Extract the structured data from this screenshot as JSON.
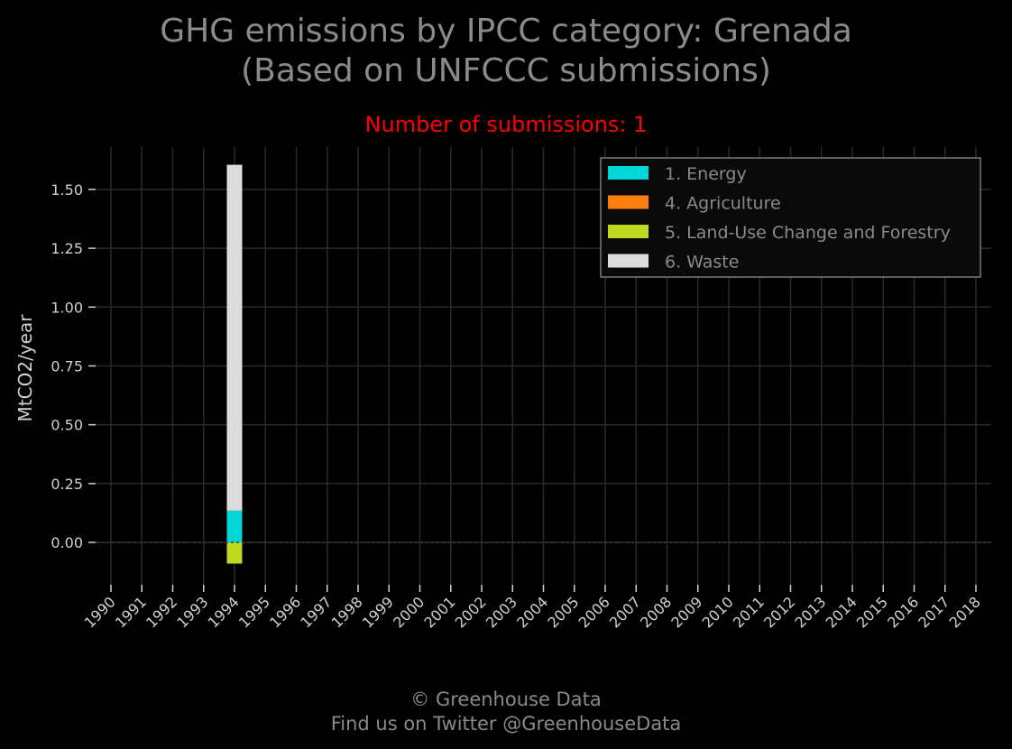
{
  "header": {
    "title_line1": "GHG emissions by IPCC category: Grenada",
    "title_line2": "(Based on UNFCCC submissions)",
    "subtitle": "Number of submissions: 1"
  },
  "footer": {
    "line1": "© Greenhouse Data",
    "line2": "Find us on Twitter @GreenhouseData"
  },
  "colors": {
    "background": "#000000",
    "grid": "#2a2a2a",
    "text": "#8a8a8a",
    "tick": "#d0d0d0",
    "subtitle": "#ff0000"
  },
  "chart_data": {
    "type": "bar",
    "stacked": true,
    "ylabel": "MtCO2/year",
    "xlabel": "",
    "ylim": [
      -0.18,
      1.68
    ],
    "yticks": [
      0.0,
      0.25,
      0.5,
      0.75,
      1.0,
      1.25,
      1.5
    ],
    "ytick_labels": [
      "0.00",
      "0.25",
      "0.50",
      "0.75",
      "1.00",
      "1.25",
      "1.50"
    ],
    "grid": true,
    "legend_position": "top-right",
    "categories": [
      "1990",
      "1991",
      "1992",
      "1993",
      "1994",
      "1995",
      "1996",
      "1997",
      "1998",
      "1999",
      "2000",
      "2001",
      "2002",
      "2003",
      "2004",
      "2005",
      "2006",
      "2007",
      "2008",
      "2009",
      "2010",
      "2011",
      "2012",
      "2013",
      "2014",
      "2015",
      "2016",
      "2017",
      "2018"
    ],
    "series": [
      {
        "name": "1. Energy",
        "color": "#00d8d8",
        "values": [
          null,
          null,
          null,
          null,
          0.135,
          null,
          null,
          null,
          null,
          null,
          null,
          null,
          null,
          null,
          null,
          null,
          null,
          null,
          null,
          null,
          null,
          null,
          null,
          null,
          null,
          null,
          null,
          null,
          null
        ]
      },
      {
        "name": "4. Agriculture",
        "color": "#ff7f0e",
        "values": [
          null,
          null,
          null,
          null,
          0.0,
          null,
          null,
          null,
          null,
          null,
          null,
          null,
          null,
          null,
          null,
          null,
          null,
          null,
          null,
          null,
          null,
          null,
          null,
          null,
          null,
          null,
          null,
          null,
          null
        ]
      },
      {
        "name": "5. Land-Use Change and Forestry",
        "color": "#c0d820",
        "values": [
          null,
          null,
          null,
          null,
          -0.09,
          null,
          null,
          null,
          null,
          null,
          null,
          null,
          null,
          null,
          null,
          null,
          null,
          null,
          null,
          null,
          null,
          null,
          null,
          null,
          null,
          null,
          null,
          null,
          null
        ]
      },
      {
        "name": "6. Waste",
        "color": "#dcdcdc",
        "values": [
          null,
          null,
          null,
          null,
          1.47,
          null,
          null,
          null,
          null,
          null,
          null,
          null,
          null,
          null,
          null,
          null,
          null,
          null,
          null,
          null,
          null,
          null,
          null,
          null,
          null,
          null,
          null,
          null,
          null
        ]
      }
    ]
  }
}
